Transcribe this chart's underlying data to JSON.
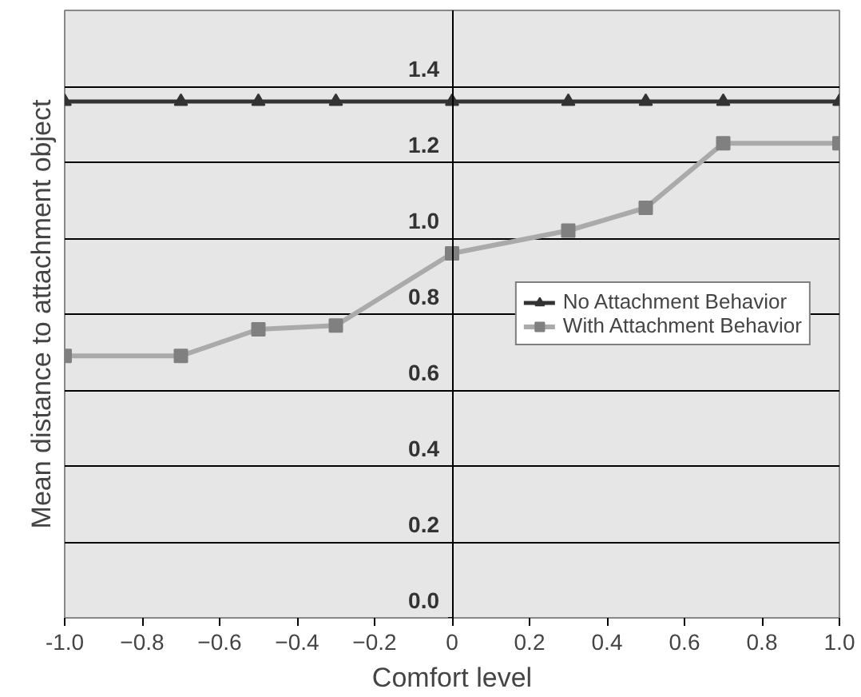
{
  "chart_data": {
    "type": "line",
    "xlabel": "Comfort level",
    "ylabel": "Mean distance to attachment object",
    "x": [
      -1.0,
      -0.7,
      -0.5,
      -0.3,
      0,
      0.3,
      0.5,
      0.7,
      1.0
    ],
    "series": [
      {
        "name": "No Attachment Behavior",
        "color": "#333333",
        "marker": "triangle",
        "values": [
          1.36,
          1.36,
          1.36,
          1.36,
          1.36,
          1.36,
          1.36,
          1.36,
          1.36
        ]
      },
      {
        "name": "With Attachment Behavior",
        "color": "#aaaaaa",
        "marker": "square",
        "values": [
          0.69,
          0.69,
          0.76,
          0.77,
          0.96,
          1.02,
          1.08,
          1.25,
          1.25
        ]
      }
    ],
    "xlim": [
      -1.0,
      1.0
    ],
    "xticks": [
      {
        "value": -1.0,
        "label": "-1.0"
      },
      -0.8,
      -0.6,
      -0.4,
      -0.2,
      0,
      0.2,
      0.4,
      0.6,
      0.8,
      {
        "value": 1.0,
        "label": "1.0"
      }
    ],
    "ylim": [
      0,
      1.6
    ],
    "yticks": [
      {
        "value": 0,
        "label": "0.0"
      },
      0.2,
      0.4,
      0.6,
      0.8,
      {
        "value": 1.0,
        "label": "1.0"
      },
      1.2,
      1.4
    ],
    "grid": "y",
    "legend": "center right",
    "line_style": "solid"
  }
}
